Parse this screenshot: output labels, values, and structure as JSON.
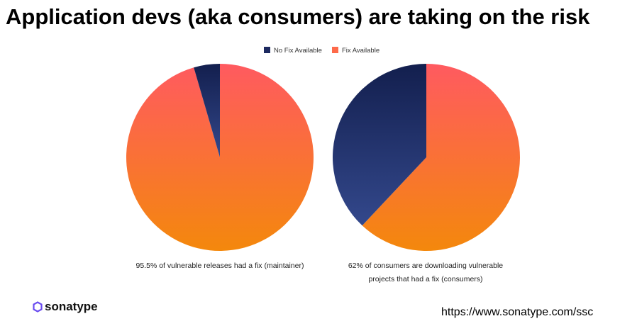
{
  "title": "Application devs (aka consumers) are taking on the risk",
  "chart_data": [
    {
      "type": "pie",
      "legend": [
        "No Fix Available",
        "Fix Available"
      ],
      "slices": [
        {
          "label": "Fix Available",
          "value": 95.5
        },
        {
          "label": "No Fix Available",
          "value": 4.5
        }
      ],
      "caption": "95.5% of vulnerable releases had a fix (maintainer)"
    },
    {
      "type": "pie",
      "legend": [
        "No Fix Available",
        "Fix Available"
      ],
      "slices": [
        {
          "label": "Fix Available",
          "value": 62
        },
        {
          "label": "No Fix Available",
          "value": 38
        }
      ],
      "caption_line1": "62% of consumers are downloading vulnerable",
      "caption_line2": "projects that had a fix (consumers)"
    }
  ],
  "legend": {
    "no_fix": "No Fix Available",
    "fix": "Fix Available"
  },
  "colors": {
    "navy_top": "#131f4e",
    "navy_bottom": "#33488c",
    "fix_top": "#ff5a60",
    "fix_bottom": "#f4880c"
  },
  "logo": "sonatype",
  "url": "https://www.sonatype.com/ssc"
}
